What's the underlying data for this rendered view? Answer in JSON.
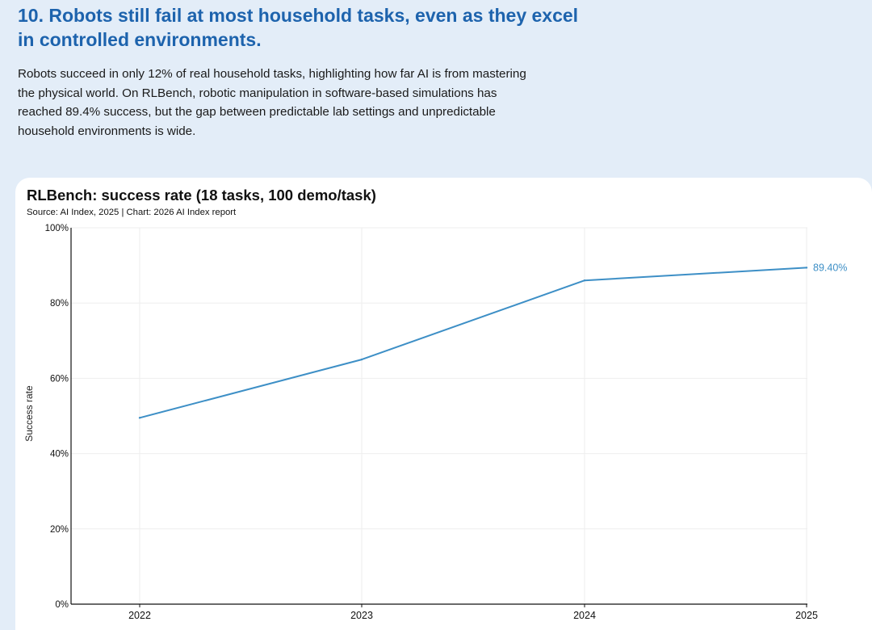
{
  "header": {
    "headline": "10. Robots still fail at most household tasks, even as they excel in controlled environments.",
    "lede": "Robots succeed in only 12% of real household tasks, highlighting how far AI is from mastering the physical world. On RLBench, robotic manipulation in software-based simulations has reached 89.4% success, but the gap between predictable lab settings and unpredictable household environments is wide."
  },
  "chart_data": {
    "type": "line",
    "title": "RLBench: success rate (18 tasks, 100 demo/task)",
    "subtitle": "Source: AI Index, 2025 | Chart: 2026 AI Index report",
    "xlabel": "",
    "ylabel": "Success rate",
    "x": [
      "2022",
      "2023",
      "2024",
      "2025"
    ],
    "series": [
      {
        "values": [
          49.5,
          65.0,
          86.0,
          89.4
        ],
        "color": "#3d8fc6"
      }
    ],
    "end_label": "89.40%",
    "ylim": [
      0,
      100
    ],
    "yticks": [
      "0%",
      "20%",
      "40%",
      "60%",
      "80%",
      "100%"
    ],
    "grid": true,
    "colors": {
      "axis": "#111111",
      "grid": "#eeeeee",
      "line": "#3d8fc6",
      "label": "#3d8fc6"
    }
  }
}
